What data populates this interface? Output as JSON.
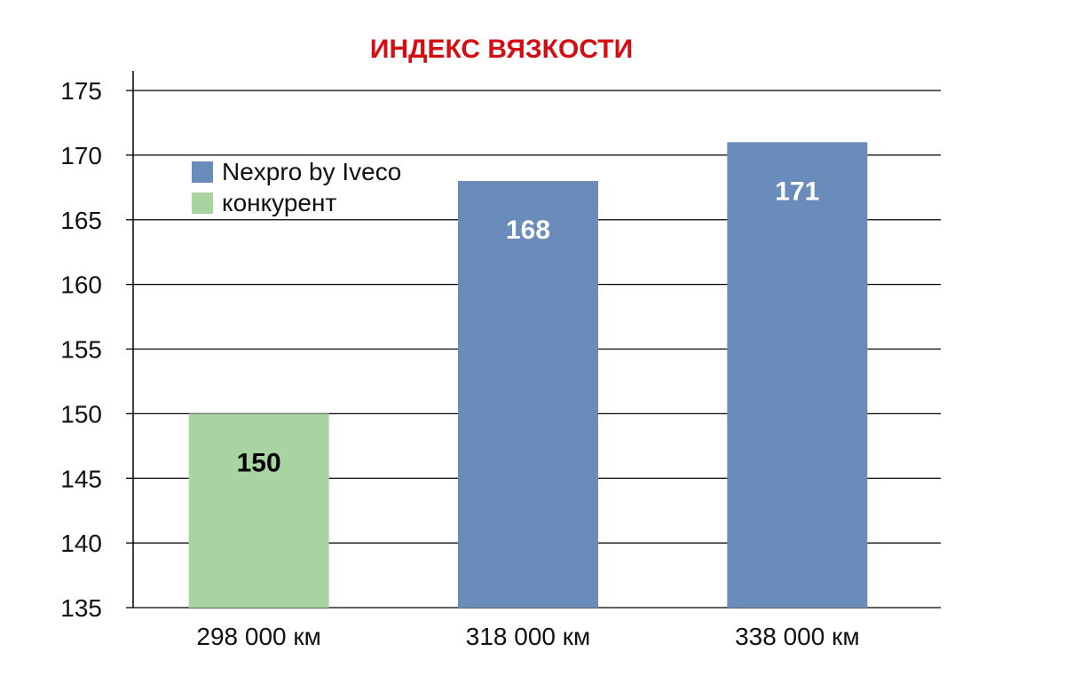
{
  "chart_data": {
    "type": "bar",
    "title": "ИНДЕКС ВЯЗКОСТИ",
    "xlabel": "",
    "ylabel": "",
    "categories": [
      "298 000 км",
      "318 000 км",
      "338 000 км"
    ],
    "series": [
      {
        "name": "Nexpro by Iveco",
        "color": "#6a8cbb",
        "values": [
          null,
          168,
          171
        ],
        "label_color": "#ffffff"
      },
      {
        "name": "конкурент",
        "color": "#a8d4a2",
        "values": [
          150,
          null,
          null
        ],
        "label_color": "#000000"
      }
    ],
    "data_labels": [
      "150",
      "168",
      "171"
    ],
    "ylim": [
      135,
      175
    ],
    "yticks": [
      135,
      140,
      145,
      150,
      155,
      160,
      165,
      170,
      175
    ],
    "grid": true,
    "legend_position": "top-left",
    "colors": {
      "title": "#d40f14",
      "grid": "#000000"
    }
  }
}
